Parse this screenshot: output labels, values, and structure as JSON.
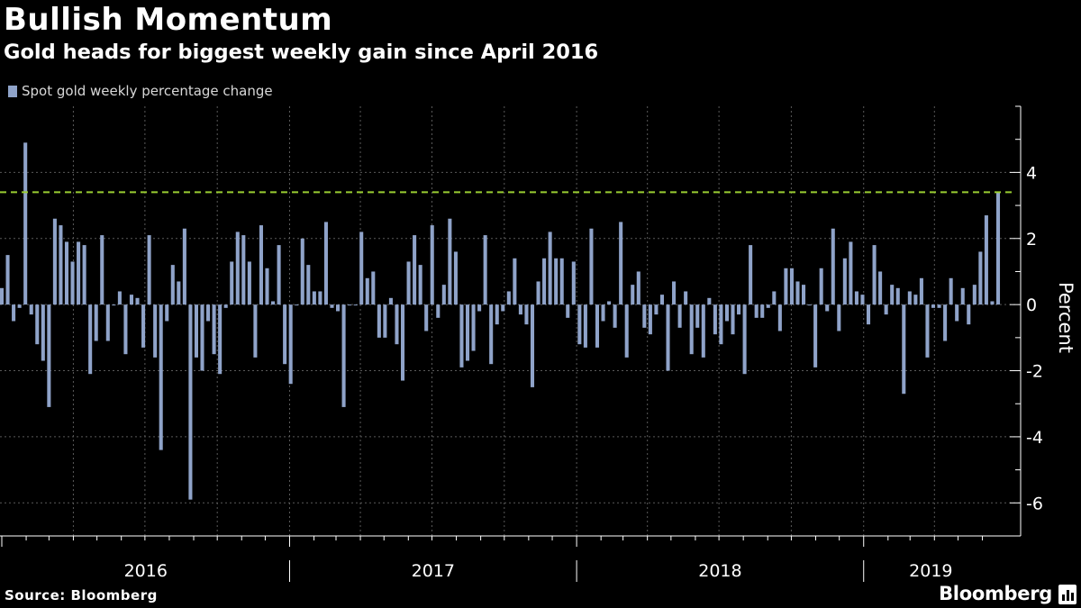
{
  "header": {
    "title": "Bullish Momentum",
    "subtitle": "Gold heads for biggest weekly gain since April 2016"
  },
  "legend": {
    "label": "Spot gold weekly percentage change"
  },
  "footer": {
    "source": "Source: Bloomberg",
    "brand": "Bloomberg",
    "brand_icon": "bloomberg-terminal-icon"
  },
  "colors": {
    "background": "#000000",
    "bar": "#8fa3c9",
    "reference_line": "#9acd32",
    "grid": "#5a5a5a",
    "text": "#ffffff"
  },
  "chart_data": {
    "type": "bar",
    "title": "Bullish Momentum",
    "subtitle": "Gold heads for biggest weekly gain since April 2016",
    "ylabel": "Percent",
    "y_axis_side": "right",
    "ylim": [
      -7,
      6
    ],
    "yticks": [
      -6,
      -4,
      -2,
      0,
      2,
      4
    ],
    "grid": true,
    "legend_position": "top-left",
    "x_start": "2016-01-01",
    "x_end": "2019-06-21",
    "year_labels": [
      "2016",
      "2017",
      "2018",
      "2019"
    ],
    "reference_line": {
      "value": 3.4,
      "style": "dashed"
    },
    "series": [
      {
        "name": "Spot gold weekly percentage change",
        "values": [
          0.5,
          1.5,
          -0.5,
          -0.1,
          4.9,
          -0.3,
          -1.2,
          -1.7,
          -3.1,
          2.6,
          2.4,
          1.9,
          1.3,
          1.9,
          1.8,
          -2.1,
          -1.1,
          2.1,
          -1.1,
          0.0,
          0.4,
          -1.5,
          0.3,
          0.2,
          -1.3,
          2.1,
          -1.6,
          -4.4,
          -0.5,
          1.2,
          0.7,
          2.3,
          -5.9,
          -1.6,
          -2.0,
          -0.5,
          -1.5,
          -2.1,
          -0.1,
          1.3,
          2.2,
          2.1,
          1.3,
          -1.6,
          2.4,
          1.1,
          0.1,
          1.8,
          -1.8,
          -2.4,
          0.0,
          2.0,
          1.2,
          0.4,
          0.4,
          2.5,
          -0.1,
          -0.2,
          -3.1,
          0.0,
          0.0,
          2.2,
          0.8,
          1.0,
          -1.0,
          -1.0,
          0.2,
          -1.2,
          -2.3,
          1.3,
          2.1,
          1.2,
          -0.8,
          2.4,
          -0.4,
          0.6,
          2.6,
          1.6,
          -1.9,
          -1.7,
          -1.4,
          -0.2,
          2.1,
          -1.8,
          -0.6,
          -0.2,
          0.4,
          1.4,
          -0.3,
          -0.6,
          -2.5,
          0.7,
          1.4,
          2.2,
          1.4,
          1.4,
          -0.4,
          1.3,
          -1.2,
          -1.3,
          2.3,
          -1.3,
          -0.5,
          0.1,
          -0.7,
          2.5,
          -1.6,
          0.6,
          1.0,
          -0.7,
          -0.9,
          -0.3,
          0.3,
          -2.0,
          0.7,
          -0.7,
          0.4,
          -1.5,
          -0.7,
          -1.6,
          0.2,
          -0.9,
          -1.2,
          -0.5,
          -0.9,
          -0.3,
          -2.1,
          1.8,
          -0.4,
          -0.4,
          -0.1,
          0.4,
          -0.8,
          1.1,
          1.1,
          0.7,
          0.6,
          0.0,
          -1.9,
          1.1,
          -0.2,
          2.3,
          -0.8,
          1.4,
          1.9,
          0.4,
          0.3,
          -0.6,
          1.8,
          1.0,
          -0.3,
          0.6,
          0.5,
          -2.7,
          0.4,
          0.3,
          0.8,
          -1.6,
          -0.1,
          -0.1,
          -1.1,
          0.8,
          -0.5,
          0.5,
          -0.6,
          0.6,
          1.6,
          2.7,
          0.1,
          3.4
        ]
      }
    ]
  }
}
